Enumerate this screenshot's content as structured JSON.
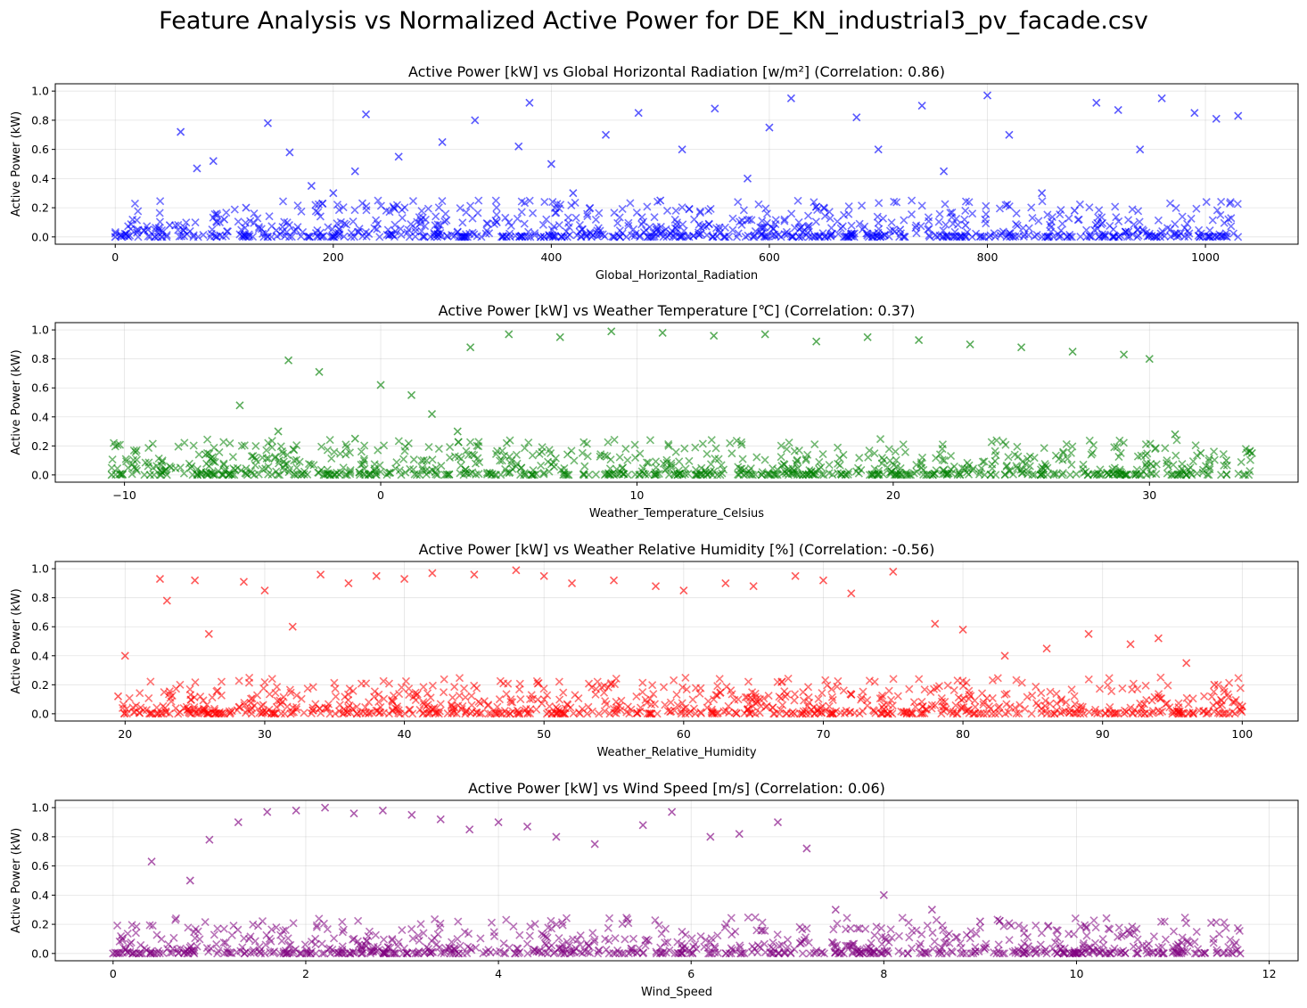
{
  "figure": {
    "title": "Feature Analysis vs Normalized Active Power for DE_KN_industrial3_pv_facade.csv"
  },
  "chart_data": [
    {
      "type": "scatter",
      "title": "Active Power [kW] vs Global Horizontal Radiation [w/m²] (Correlation: 0.86)",
      "xlabel": "Global_Horizontal_Radiation",
      "ylabel": "Active Power (kW)",
      "xlim": [
        -55,
        1085
      ],
      "ylim": [
        -0.05,
        1.05
      ],
      "xticks": [
        0,
        200,
        400,
        600,
        800,
        1000
      ],
      "xtick_labels": [
        "0",
        "200",
        "400",
        "600",
        "800",
        "1000"
      ],
      "yticks": [
        0.0,
        0.2,
        0.4,
        0.6,
        0.8,
        1.0
      ],
      "ytick_labels": [
        "0.0",
        "0.2",
        "0.4",
        "0.6",
        "0.8",
        "1.0"
      ],
      "color": "#0000ff",
      "marker": "x",
      "grid": true,
      "series": [
        {
          "points": [
            [
              0,
              0.0
            ],
            [
              5,
              0.01
            ],
            [
              10,
              0.02
            ],
            [
              20,
              0.03
            ],
            [
              30,
              0.05
            ],
            [
              40,
              0.06
            ],
            [
              50,
              0.08
            ],
            [
              60,
              0.72
            ],
            [
              75,
              0.47
            ],
            [
              90,
              0.52
            ],
            [
              100,
              0.12
            ],
            [
              120,
              0.2
            ],
            [
              140,
              0.78
            ],
            [
              160,
              0.58
            ],
            [
              180,
              0.35
            ],
            [
              200,
              0.3
            ],
            [
              220,
              0.45
            ],
            [
              230,
              0.84
            ],
            [
              260,
              0.55
            ],
            [
              300,
              0.65
            ],
            [
              330,
              0.8
            ],
            [
              350,
              0.1
            ],
            [
              370,
              0.62
            ],
            [
              380,
              0.92
            ],
            [
              400,
              0.5
            ],
            [
              420,
              0.3
            ],
            [
              450,
              0.7
            ],
            [
              480,
              0.85
            ],
            [
              500,
              0.25
            ],
            [
              520,
              0.6
            ],
            [
              550,
              0.88
            ],
            [
              580,
              0.4
            ],
            [
              600,
              0.75
            ],
            [
              620,
              0.95
            ],
            [
              650,
              0.2
            ],
            [
              680,
              0.82
            ],
            [
              700,
              0.6
            ],
            [
              720,
              0.05
            ],
            [
              740,
              0.9
            ],
            [
              760,
              0.45
            ],
            [
              780,
              0.08
            ],
            [
              800,
              0.97
            ],
            [
              820,
              0.7
            ],
            [
              850,
              0.3
            ],
            [
              880,
              0.18
            ],
            [
              900,
              0.92
            ],
            [
              920,
              0.87
            ],
            [
              940,
              0.6
            ],
            [
              960,
              0.95
            ],
            [
              990,
              0.85
            ],
            [
              1010,
              0.81
            ],
            [
              1030,
              0.83
            ]
          ]
        }
      ]
    },
    {
      "type": "scatter",
      "title": "Active Power [kW] vs Weather Temperature [℃] (Correlation: 0.37)",
      "xlabel": "Weather_Temperature_Celsius",
      "ylabel": "Active Power (kW)",
      "xlim": [
        -12.7,
        35.8
      ],
      "ylim": [
        -0.05,
        1.05
      ],
      "xticks": [
        -10,
        0,
        10,
        20,
        30
      ],
      "xtick_labels": [
        "−10",
        "0",
        "10",
        "20",
        "30"
      ],
      "yticks": [
        0.0,
        0.2,
        0.4,
        0.6,
        0.8,
        1.0
      ],
      "ytick_labels": [
        "0.0",
        "0.2",
        "0.4",
        "0.6",
        "0.8",
        "1.0"
      ],
      "color": "#008000",
      "marker": "x",
      "grid": true,
      "series": [
        {
          "points": [
            [
              -10.5,
              0.0
            ],
            [
              -9,
              0.0
            ],
            [
              -7,
              0.02
            ],
            [
              -5.5,
              0.48
            ],
            [
              -4,
              0.3
            ],
            [
              -3.6,
              0.79
            ],
            [
              -2.4,
              0.71
            ],
            [
              -1,
              0.25
            ],
            [
              0,
              0.62
            ],
            [
              1.2,
              0.55
            ],
            [
              2,
              0.42
            ],
            [
              3,
              0.3
            ],
            [
              3.5,
              0.88
            ],
            [
              5,
              0.97
            ],
            [
              7,
              0.95
            ],
            [
              9,
              0.99
            ],
            [
              11,
              0.98
            ],
            [
              13,
              0.96
            ],
            [
              15,
              0.97
            ],
            [
              17,
              0.92
            ],
            [
              19,
              0.95
            ],
            [
              21,
              0.93
            ],
            [
              23,
              0.9
            ],
            [
              25,
              0.88
            ],
            [
              27,
              0.85
            ],
            [
              29,
              0.83
            ],
            [
              30,
              0.8
            ],
            [
              31,
              0.28
            ],
            [
              32,
              0.15
            ],
            [
              33,
              0.1
            ],
            [
              34,
              0.15
            ]
          ]
        }
      ]
    },
    {
      "type": "scatter",
      "title": "Active Power [kW] vs Weather Relative Humidity [%] (Correlation: -0.56)",
      "xlabel": "Weather_Relative_Humidity",
      "ylabel": "Active Power (kW)",
      "xlim": [
        15,
        104
      ],
      "ylim": [
        -0.05,
        1.05
      ],
      "xticks": [
        20,
        30,
        40,
        50,
        60,
        70,
        80,
        90,
        100
      ],
      "xtick_labels": [
        "20",
        "30",
        "40",
        "50",
        "60",
        "70",
        "80",
        "90",
        "100"
      ],
      "yticks": [
        0.0,
        0.2,
        0.4,
        0.6,
        0.8,
        1.0
      ],
      "ytick_labels": [
        "0.0",
        "0.2",
        "0.4",
        "0.6",
        "0.8",
        "1.0"
      ],
      "color": "#ff0000",
      "marker": "x",
      "grid": true,
      "series": [
        {
          "points": [
            [
              19.5,
              0.12
            ],
            [
              20,
              0.4
            ],
            [
              22.5,
              0.93
            ],
            [
              23,
              0.78
            ],
            [
              25,
              0.92
            ],
            [
              26,
              0.55
            ],
            [
              28.5,
              0.91
            ],
            [
              30,
              0.85
            ],
            [
              32,
              0.6
            ],
            [
              34,
              0.96
            ],
            [
              36,
              0.9
            ],
            [
              38,
              0.95
            ],
            [
              40,
              0.93
            ],
            [
              42,
              0.97
            ],
            [
              45,
              0.96
            ],
            [
              48,
              0.99
            ],
            [
              50,
              0.95
            ],
            [
              52,
              0.9
            ],
            [
              55,
              0.92
            ],
            [
              58,
              0.88
            ],
            [
              60,
              0.85
            ],
            [
              63,
              0.9
            ],
            [
              65,
              0.88
            ],
            [
              68,
              0.95
            ],
            [
              70,
              0.92
            ],
            [
              72,
              0.83
            ],
            [
              75,
              0.98
            ],
            [
              78,
              0.62
            ],
            [
              80,
              0.58
            ],
            [
              83,
              0.4
            ],
            [
              86,
              0.45
            ],
            [
              89,
              0.55
            ],
            [
              92,
              0.48
            ],
            [
              94,
              0.52
            ],
            [
              96,
              0.35
            ],
            [
              98,
              0.2
            ],
            [
              100,
              0.05
            ]
          ]
        }
      ]
    },
    {
      "type": "scatter",
      "title": "Active Power [kW] vs Wind Speed [m/s] (Correlation: 0.06)",
      "xlabel": "Wind_Speed",
      "ylabel": "Active Power (kW)",
      "xlim": [
        -0.6,
        12.3
      ],
      "ylim": [
        -0.05,
        1.05
      ],
      "xticks": [
        0,
        2,
        4,
        6,
        8,
        10,
        12
      ],
      "xtick_labels": [
        "0",
        "2",
        "4",
        "6",
        "8",
        "10",
        "12"
      ],
      "yticks": [
        0.0,
        0.2,
        0.4,
        0.6,
        0.8,
        1.0
      ],
      "ytick_labels": [
        "0.0",
        "0.2",
        "0.4",
        "0.6",
        "0.8",
        "1.0"
      ],
      "color": "#800080",
      "marker": "x",
      "grid": true,
      "series": [
        {
          "points": [
            [
              0,
              0.0
            ],
            [
              0.2,
              0.0
            ],
            [
              0.4,
              0.63
            ],
            [
              0.8,
              0.5
            ],
            [
              1.0,
              0.78
            ],
            [
              1.3,
              0.9
            ],
            [
              1.6,
              0.97
            ],
            [
              1.9,
              0.98
            ],
            [
              2.2,
              1.0
            ],
            [
              2.5,
              0.96
            ],
            [
              2.8,
              0.98
            ],
            [
              3.1,
              0.95
            ],
            [
              3.4,
              0.92
            ],
            [
              3.7,
              0.85
            ],
            [
              4.0,
              0.9
            ],
            [
              4.3,
              0.87
            ],
            [
              4.6,
              0.8
            ],
            [
              5.0,
              0.75
            ],
            [
              5.5,
              0.88
            ],
            [
              5.8,
              0.97
            ],
            [
              6.2,
              0.8
            ],
            [
              6.5,
              0.82
            ],
            [
              6.9,
              0.9
            ],
            [
              7.2,
              0.72
            ],
            [
              7.5,
              0.3
            ],
            [
              8.0,
              0.4
            ],
            [
              8.5,
              0.3
            ],
            [
              9.0,
              0.22
            ],
            [
              9.5,
              0.05
            ],
            [
              9.8,
              0.0
            ],
            [
              10.3,
              0.0
            ],
            [
              10.9,
              0.0
            ],
            [
              11.3,
              0.0
            ],
            [
              11.7,
              0.0
            ]
          ]
        }
      ]
    }
  ]
}
